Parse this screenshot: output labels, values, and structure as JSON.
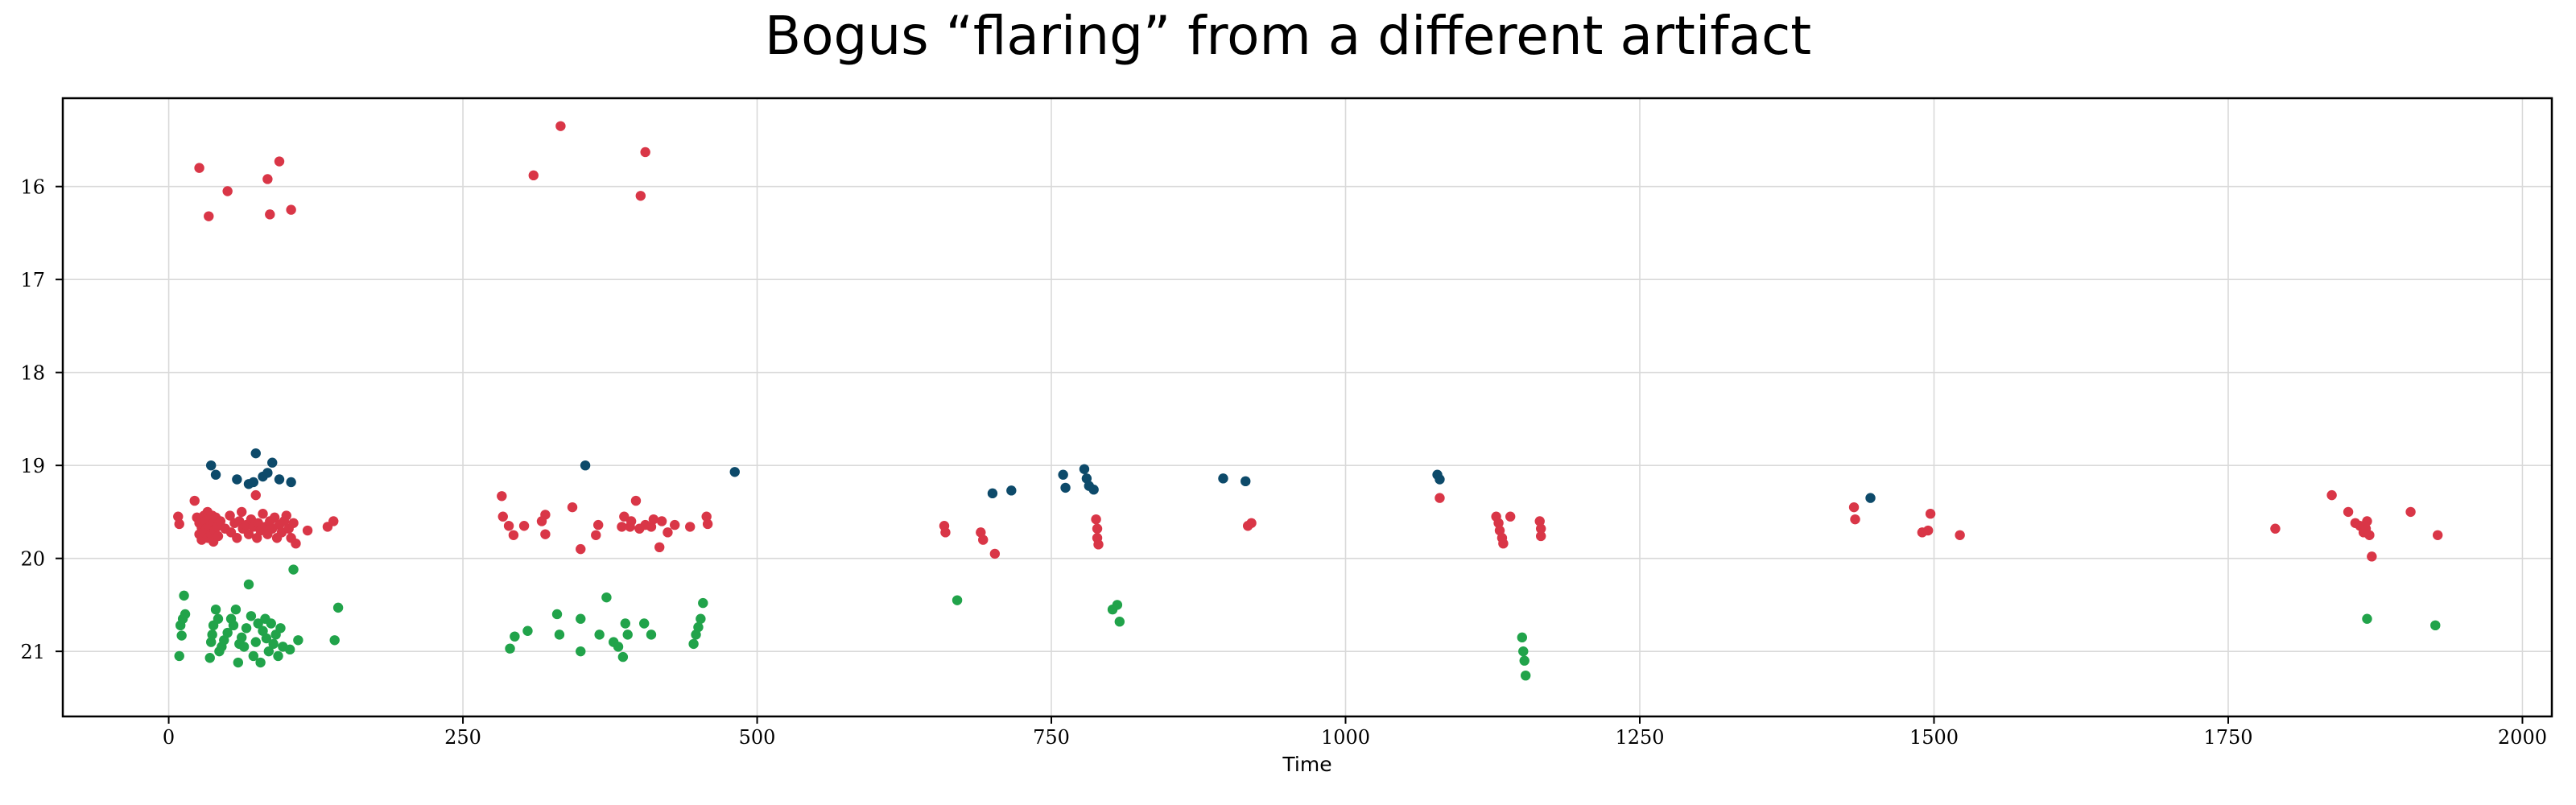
{
  "chart_data": {
    "type": "scatter",
    "title": "Bogus “flaring” from a different artifact",
    "xlabel": "Time",
    "ylabel": "",
    "xlim": [
      -90,
      2025
    ],
    "ylim": [
      21.7,
      15.05
    ],
    "y_inverted": true,
    "grid": true,
    "xticks": [
      0,
      250,
      500,
      750,
      1000,
      1250,
      1500,
      1750,
      2000
    ],
    "yticks": [
      16,
      17,
      18,
      19,
      20,
      21
    ],
    "series": [
      {
        "color": "#d93647",
        "points": [
          [
            26,
            15.8
          ],
          [
            34,
            16.32
          ],
          [
            50,
            16.05
          ],
          [
            84,
            15.92
          ],
          [
            86,
            16.3
          ],
          [
            94,
            15.73
          ],
          [
            104,
            16.25
          ],
          [
            310,
            15.88
          ],
          [
            333,
            15.35
          ],
          [
            401,
            16.1
          ],
          [
            405,
            15.63
          ],
          [
            8,
            19.55
          ],
          [
            9,
            19.63
          ],
          [
            22,
            19.38
          ],
          [
            24,
            19.56
          ],
          [
            26,
            19.62
          ],
          [
            26,
            19.74
          ],
          [
            28,
            19.67
          ],
          [
            28,
            19.8
          ],
          [
            30,
            19.54
          ],
          [
            30,
            19.72
          ],
          [
            31,
            19.6
          ],
          [
            32,
            19.68
          ],
          [
            33,
            19.5
          ],
          [
            33,
            19.78
          ],
          [
            34,
            19.58
          ],
          [
            35,
            19.66
          ],
          [
            36,
            19.74
          ],
          [
            37,
            19.54
          ],
          [
            38,
            19.62
          ],
          [
            38,
            19.82
          ],
          [
            39,
            19.7
          ],
          [
            40,
            19.56
          ],
          [
            41,
            19.66
          ],
          [
            42,
            19.76
          ],
          [
            44,
            19.6
          ],
          [
            48,
            19.68
          ],
          [
            52,
            19.54
          ],
          [
            53,
            19.72
          ],
          [
            56,
            19.62
          ],
          [
            58,
            19.78
          ],
          [
            60,
            19.6
          ],
          [
            62,
            19.5
          ],
          [
            63,
            19.68
          ],
          [
            66,
            19.64
          ],
          [
            68,
            19.74
          ],
          [
            70,
            19.58
          ],
          [
            72,
            19.66
          ],
          [
            74,
            19.32
          ],
          [
            75,
            19.78
          ],
          [
            76,
            19.62
          ],
          [
            78,
            19.7
          ],
          [
            80,
            19.52
          ],
          [
            82,
            19.66
          ],
          [
            84,
            19.74
          ],
          [
            86,
            19.6
          ],
          [
            88,
            19.68
          ],
          [
            90,
            19.56
          ],
          [
            92,
            19.78
          ],
          [
            94,
            19.64
          ],
          [
            96,
            19.72
          ],
          [
            98,
            19.6
          ],
          [
            100,
            19.54
          ],
          [
            102,
            19.68
          ],
          [
            104,
            19.78
          ],
          [
            106,
            19.62
          ],
          [
            108,
            19.84
          ],
          [
            118,
            19.7
          ],
          [
            135,
            19.66
          ],
          [
            140,
            19.6
          ],
          [
            283,
            19.33
          ],
          [
            284,
            19.55
          ],
          [
            289,
            19.65
          ],
          [
            293,
            19.75
          ],
          [
            302,
            19.65
          ],
          [
            317,
            19.6
          ],
          [
            320,
            19.53
          ],
          [
            320,
            19.74
          ],
          [
            343,
            19.45
          ],
          [
            350,
            19.9
          ],
          [
            363,
            19.75
          ],
          [
            365,
            19.64
          ],
          [
            385,
            19.66
          ],
          [
            387,
            19.55
          ],
          [
            392,
            19.66
          ],
          [
            393,
            19.6
          ],
          [
            397,
            19.38
          ],
          [
            400,
            19.68
          ],
          [
            405,
            19.64
          ],
          [
            410,
            19.66
          ],
          [
            412,
            19.58
          ],
          [
            417,
            19.88
          ],
          [
            419,
            19.6
          ],
          [
            424,
            19.72
          ],
          [
            430,
            19.64
          ],
          [
            443,
            19.66
          ],
          [
            457,
            19.55
          ],
          [
            458,
            19.63
          ],
          [
            659,
            19.65
          ],
          [
            660,
            19.72
          ],
          [
            690,
            19.72
          ],
          [
            692,
            19.8
          ],
          [
            702,
            19.95
          ],
          [
            788,
            19.58
          ],
          [
            789,
            19.68
          ],
          [
            789,
            19.78
          ],
          [
            790,
            19.85
          ],
          [
            917,
            19.65
          ],
          [
            920,
            19.62
          ],
          [
            1080,
            19.35
          ],
          [
            1128,
            19.55
          ],
          [
            1130,
            19.62
          ],
          [
            1131,
            19.7
          ],
          [
            1133,
            19.78
          ],
          [
            1134,
            19.84
          ],
          [
            1140,
            19.55
          ],
          [
            1165,
            19.6
          ],
          [
            1166,
            19.68
          ],
          [
            1166,
            19.76
          ],
          [
            1432,
            19.45
          ],
          [
            1433,
            19.58
          ],
          [
            1490,
            19.72
          ],
          [
            1495,
            19.7
          ],
          [
            1497,
            19.52
          ],
          [
            1522,
            19.75
          ],
          [
            1790,
            19.68
          ],
          [
            1838,
            19.32
          ],
          [
            1852,
            19.5
          ],
          [
            1858,
            19.62
          ],
          [
            1862,
            19.65
          ],
          [
            1865,
            19.72
          ],
          [
            1867,
            19.68
          ],
          [
            1868,
            19.6
          ],
          [
            1870,
            19.75
          ],
          [
            1872,
            19.98
          ],
          [
            1905,
            19.5
          ],
          [
            1928,
            19.75
          ]
        ]
      },
      {
        "color": "#0d4a6a",
        "points": [
          [
            36,
            19.0
          ],
          [
            40,
            19.1
          ],
          [
            58,
            19.15
          ],
          [
            68,
            19.2
          ],
          [
            72,
            19.18
          ],
          [
            74,
            18.87
          ],
          [
            80,
            19.12
          ],
          [
            84,
            19.08
          ],
          [
            88,
            18.97
          ],
          [
            94,
            19.15
          ],
          [
            104,
            19.18
          ],
          [
            354,
            19.0
          ],
          [
            481,
            19.07
          ],
          [
            700,
            19.3
          ],
          [
            716,
            19.27
          ],
          [
            760,
            19.1
          ],
          [
            762,
            19.24
          ],
          [
            778,
            19.04
          ],
          [
            780,
            19.14
          ],
          [
            782,
            19.22
          ],
          [
            786,
            19.26
          ],
          [
            896,
            19.14
          ],
          [
            915,
            19.17
          ],
          [
            1078,
            19.1
          ],
          [
            1080,
            19.15
          ],
          [
            1446,
            19.35
          ]
        ]
      },
      {
        "color": "#21a34a",
        "points": [
          [
            9,
            21.05
          ],
          [
            10,
            20.72
          ],
          [
            11,
            20.83
          ],
          [
            12,
            20.65
          ],
          [
            13,
            20.4
          ],
          [
            14,
            20.6
          ],
          [
            35,
            21.07
          ],
          [
            36,
            20.9
          ],
          [
            37,
            20.82
          ],
          [
            38,
            20.72
          ],
          [
            40,
            20.55
          ],
          [
            42,
            20.65
          ],
          [
            43,
            21.0
          ],
          [
            45,
            20.95
          ],
          [
            47,
            20.88
          ],
          [
            50,
            20.8
          ],
          [
            53,
            20.65
          ],
          [
            55,
            20.72
          ],
          [
            57,
            20.55
          ],
          [
            59,
            21.12
          ],
          [
            60,
            20.92
          ],
          [
            62,
            20.85
          ],
          [
            64,
            20.95
          ],
          [
            66,
            20.75
          ],
          [
            68,
            20.28
          ],
          [
            70,
            20.62
          ],
          [
            72,
            21.05
          ],
          [
            74,
            20.9
          ],
          [
            76,
            20.7
          ],
          [
            78,
            21.12
          ],
          [
            80,
            20.78
          ],
          [
            82,
            20.65
          ],
          [
            83,
            20.86
          ],
          [
            85,
            21.0
          ],
          [
            87,
            20.7
          ],
          [
            89,
            20.92
          ],
          [
            91,
            20.82
          ],
          [
            93,
            21.05
          ],
          [
            95,
            20.75
          ],
          [
            97,
            20.95
          ],
          [
            103,
            20.98
          ],
          [
            106,
            20.12
          ],
          [
            110,
            20.88
          ],
          [
            141,
            20.88
          ],
          [
            144,
            20.53
          ],
          [
            290,
            20.97
          ],
          [
            294,
            20.84
          ],
          [
            305,
            20.78
          ],
          [
            330,
            20.6
          ],
          [
            332,
            20.82
          ],
          [
            350,
            20.65
          ],
          [
            350,
            21.0
          ],
          [
            366,
            20.82
          ],
          [
            372,
            20.42
          ],
          [
            378,
            20.9
          ],
          [
            382,
            20.95
          ],
          [
            386,
            21.06
          ],
          [
            388,
            20.7
          ],
          [
            390,
            20.82
          ],
          [
            404,
            20.7
          ],
          [
            410,
            20.82
          ],
          [
            446,
            20.92
          ],
          [
            448,
            20.82
          ],
          [
            450,
            20.74
          ],
          [
            452,
            20.65
          ],
          [
            454,
            20.48
          ],
          [
            670,
            20.45
          ],
          [
            802,
            20.55
          ],
          [
            806,
            20.5
          ],
          [
            808,
            20.68
          ],
          [
            1150,
            20.85
          ],
          [
            1151,
            21.0
          ],
          [
            1152,
            21.1
          ],
          [
            1153,
            21.26
          ],
          [
            1868,
            20.65
          ],
          [
            1926,
            20.72
          ]
        ]
      }
    ]
  }
}
